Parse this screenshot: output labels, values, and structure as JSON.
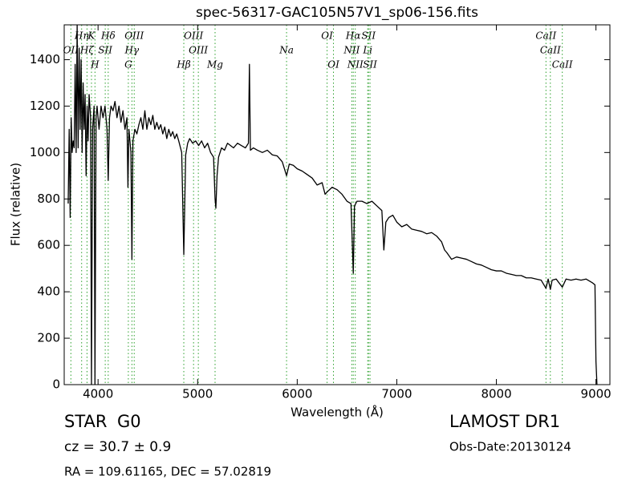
{
  "chart_data": {
    "type": "line",
    "title": "spec-56317-GAC105N57V1_sp06-156.fits",
    "x_label": "Wavelength (Å)",
    "y_label": "Flux (relative)",
    "color": "#000000",
    "line_color": "#2ca02c",
    "xlim": [
      3660,
      9140
    ],
    "ylim": [
      0,
      1550
    ],
    "xticks": [
      4000,
      5000,
      6000,
      7000,
      8000,
      9000
    ],
    "yticks": [
      0,
      200,
      400,
      600,
      800,
      1000,
      1200,
      1400
    ],
    "x": [
      3700,
      3710,
      3720,
      3730,
      3740,
      3750,
      3760,
      3770,
      3780,
      3790,
      3800,
      3810,
      3820,
      3830,
      3840,
      3850,
      3860,
      3870,
      3880,
      3890,
      3900,
      3910,
      3925,
      3934,
      3945,
      3960,
      3969,
      3980,
      3990,
      4010,
      4030,
      4050,
      4070,
      4090,
      4102,
      4115,
      4130,
      4150,
      4170,
      4190,
      4210,
      4230,
      4250,
      4270,
      4290,
      4300,
      4310,
      4330,
      4340,
      4350,
      4370,
      4390,
      4410,
      4430,
      4450,
      4470,
      4490,
      4510,
      4530,
      4550,
      4570,
      4590,
      4610,
      4630,
      4650,
      4670,
      4690,
      4710,
      4730,
      4750,
      4770,
      4790,
      4810,
      4840,
      4861,
      4880,
      4900,
      4920,
      4950,
      4980,
      5010,
      5040,
      5070,
      5100,
      5130,
      5160,
      5175,
      5183,
      5195,
      5210,
      5240,
      5270,
      5300,
      5330,
      5360,
      5400,
      5440,
      5480,
      5510,
      5520,
      5530,
      5560,
      5600,
      5650,
      5700,
      5750,
      5800,
      5850,
      5893,
      5920,
      5960,
      6000,
      6050,
      6100,
      6150,
      6200,
      6250,
      6280,
      6300,
      6350,
      6400,
      6450,
      6500,
      6540,
      6563,
      6575,
      6600,
      6650,
      6700,
      6750,
      6800,
      6850,
      6870,
      6890,
      6920,
      6960,
      7000,
      7050,
      7100,
      7150,
      7200,
      7250,
      7300,
      7350,
      7400,
      7450,
      7480,
      7500,
      7550,
      7600,
      7650,
      7700,
      7750,
      7800,
      7850,
      7900,
      7950,
      8000,
      8050,
      8100,
      8150,
      8200,
      8250,
      8300,
      8350,
      8400,
      8450,
      8498,
      8520,
      8542,
      8560,
      8600,
      8662,
      8700,
      8750,
      8800,
      8850,
      8900,
      8960,
      8990,
      9000,
      9010
    ],
    "values": [
      780,
      1100,
      720,
      1150,
      1000,
      1050,
      1020,
      1380,
      1000,
      1550,
      1020,
      1450,
      1100,
      1400,
      1000,
      1300,
      1100,
      1250,
      900,
      1200,
      1050,
      1250,
      1150,
      0,
      1100,
      1200,
      0,
      1150,
      1200,
      1100,
      1200,
      1150,
      1200,
      1100,
      880,
      1150,
      1200,
      1180,
      1220,
      1150,
      1200,
      1130,
      1180,
      1100,
      1150,
      850,
      1100,
      1000,
      540,
      1050,
      1100,
      1080,
      1120,
      1150,
      1100,
      1180,
      1100,
      1150,
      1120,
      1160,
      1100,
      1130,
      1100,
      1120,
      1080,
      1110,
      1060,
      1100,
      1070,
      1090,
      1060,
      1080,
      1050,
      1000,
      560,
      990,
      1040,
      1060,
      1040,
      1050,
      1030,
      1050,
      1020,
      1040,
      1000,
      980,
      800,
      760,
      900,
      980,
      1020,
      1010,
      1040,
      1030,
      1020,
      1040,
      1030,
      1020,
      1040,
      1380,
      1010,
      1020,
      1010,
      1000,
      1010,
      990,
      985,
      960,
      900,
      950,
      945,
      930,
      920,
      905,
      890,
      860,
      870,
      820,
      830,
      850,
      840,
      820,
      790,
      780,
      480,
      770,
      790,
      790,
      780,
      790,
      770,
      750,
      580,
      700,
      720,
      730,
      700,
      680,
      690,
      670,
      665,
      660,
      650,
      655,
      640,
      615,
      580,
      570,
      540,
      550,
      545,
      540,
      530,
      520,
      515,
      505,
      495,
      490,
      490,
      480,
      475,
      470,
      470,
      460,
      460,
      455,
      450,
      415,
      455,
      410,
      450,
      455,
      420,
      455,
      450,
      455,
      450,
      455,
      440,
      430,
      100,
      0
    ],
    "lines": [
      {
        "label": "OII",
        "wavelength": 3727
      },
      {
        "label": "Hη",
        "wavelength": 3835
      },
      {
        "label": "Hζ",
        "wavelength": 3889
      },
      {
        "label": "K",
        "wavelength": 3934
      },
      {
        "label": "H",
        "wavelength": 3969
      },
      {
        "label": "SII",
        "wavelength": 4072
      },
      {
        "label": "Hδ",
        "wavelength": 4102
      },
      {
        "label": "G",
        "wavelength": 4304
      },
      {
        "label": "Hγ",
        "wavelength": 4340
      },
      {
        "label": "OIII",
        "wavelength": 4363
      },
      {
        "label": "Hβ",
        "wavelength": 4861
      },
      {
        "label": "OIII",
        "wavelength": 4959
      },
      {
        "label": "OIII",
        "wavelength": 5007
      },
      {
        "label": "Mg",
        "wavelength": 5175
      },
      {
        "label": "Na",
        "wavelength": 5893
      },
      {
        "label": "OI",
        "wavelength": 6300
      },
      {
        "label": "OI",
        "wavelength": 6364
      },
      {
        "label": "NII",
        "wavelength": 6548
      },
      {
        "label": "Hα",
        "wavelength": 6563
      },
      {
        "label": "NII",
        "wavelength": 6583
      },
      {
        "label": "Li",
        "wavelength": 6708
      },
      {
        "label": "SII",
        "wavelength": 6716
      },
      {
        "label": "SII",
        "wavelength": 6731
      },
      {
        "label": "CaII",
        "wavelength": 8498
      },
      {
        "label": "CaII",
        "wavelength": 8542
      },
      {
        "label": "CaII",
        "wavelength": 8662
      }
    ],
    "annotations": {
      "object_class": "STAR",
      "subclass": "G0",
      "redshift": "cz = 30.7 ± 0.9",
      "coordinates": "RA = 109.61165, DEC = 57.02819",
      "survey": "LAMOST DR1",
      "obs_date": "Obs-Date:20130124"
    }
  }
}
